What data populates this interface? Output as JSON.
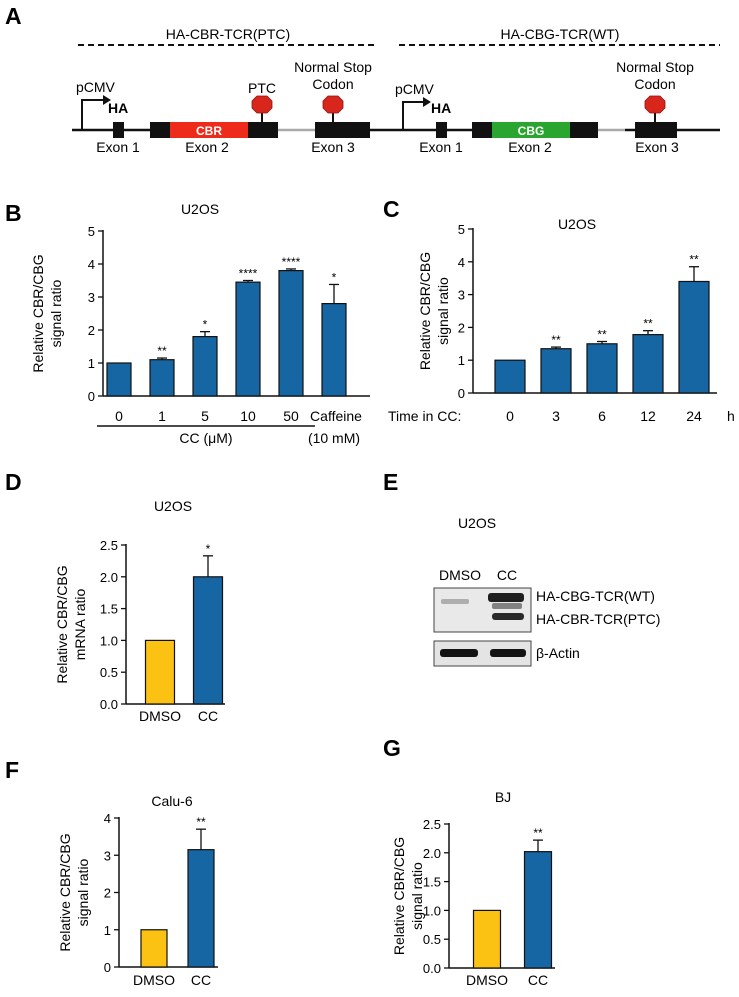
{
  "panel_labels": {
    "a": "A",
    "b": "B",
    "c": "C",
    "d": "D",
    "e": "E",
    "f": "F",
    "g": "G"
  },
  "colors": {
    "blue": "#1566A2",
    "yellow": "#FBC213",
    "red": "#EE2B1B",
    "green": "#2AA630",
    "stop_sign": "#D9261C",
    "black": "#111111",
    "grey_line": "#A9A9A9"
  },
  "constructs": {
    "ptc": {
      "title": "HA-CBR-TCR(PTC)",
      "promoter": "pCMV",
      "tag": "HA",
      "gene": "CBR",
      "stop_label": "PTC",
      "normal_stop_line1": "Normal Stop",
      "normal_stop_line2": "Codon",
      "exon1": "Exon 1",
      "exon2": "Exon 2",
      "exon3": "Exon 3"
    },
    "wt": {
      "title": "HA-CBG-TCR(WT)",
      "promoter": "pCMV",
      "tag": "HA",
      "gene": "CBG",
      "normal_stop_line1": "Normal Stop",
      "normal_stop_line2": "Codon",
      "exon1": "Exon 1",
      "exon2": "Exon 2",
      "exon3": "Exon 3"
    }
  },
  "blot": {
    "title": "U2OS",
    "lane_labels": [
      "DMSO",
      "CC"
    ],
    "band_labels": [
      "HA-CBG-TCR(WT)",
      "HA-CBR-TCR(PTC)",
      "β-Actin"
    ]
  },
  "chart_data": [
    {
      "panel": "B",
      "type": "bar",
      "title": "U2OS",
      "ylabel_line1": "Relative CBR/CBG",
      "ylabel_line2": "signal ratio",
      "ylim": [
        0,
        5
      ],
      "yticks": [
        "0",
        "1",
        "2",
        "3",
        "4",
        "5"
      ],
      "categories": [
        "0",
        "1",
        "5",
        "10",
        "50",
        "Caffeine"
      ],
      "values": [
        1.0,
        1.1,
        1.8,
        3.45,
        3.8,
        2.8
      ],
      "errors": [
        0,
        0.05,
        0.15,
        0.05,
        0.05,
        0.58
      ],
      "significance": [
        "",
        "**",
        "*",
        "****",
        "****",
        "*"
      ],
      "xgroup_label": "CC (μM)",
      "extra_label": "(10 mM)",
      "bar_colors": [
        "#1566A2",
        "#1566A2",
        "#1566A2",
        "#1566A2",
        "#1566A2",
        "#1566A2"
      ]
    },
    {
      "panel": "C",
      "type": "bar",
      "title": "U2OS",
      "ylabel_line1": "Relative CBR/CBG",
      "ylabel_line2": "signal ratio",
      "ylim": [
        0,
        5
      ],
      "yticks": [
        "0",
        "1",
        "2",
        "3",
        "4",
        "5"
      ],
      "categories": [
        "0",
        "3",
        "6",
        "12",
        "24"
      ],
      "values": [
        1.0,
        1.35,
        1.5,
        1.78,
        3.4
      ],
      "errors": [
        0,
        0.05,
        0.07,
        0.12,
        0.45
      ],
      "significance": [
        "",
        "**",
        "**",
        "**",
        "**"
      ],
      "xprefix": "Time in CC:",
      "xunit": "h",
      "bar_colors": [
        "#1566A2",
        "#1566A2",
        "#1566A2",
        "#1566A2",
        "#1566A2"
      ]
    },
    {
      "panel": "D",
      "type": "bar",
      "title": "U2OS",
      "ylabel_line1": "Relative CBR/CBG",
      "ylabel_line2": "mRNA ratio",
      "ylim": [
        0,
        2.5
      ],
      "yticks": [
        "0.0",
        "0.5",
        "1.0",
        "1.5",
        "2.0",
        "2.5"
      ],
      "categories": [
        "DMSO",
        "CC"
      ],
      "values": [
        1.0,
        2.0
      ],
      "errors": [
        0,
        0.33
      ],
      "significance": [
        "",
        "*"
      ],
      "bar_colors": [
        "#FBC213",
        "#1566A2"
      ]
    },
    {
      "panel": "F",
      "type": "bar",
      "title": "Calu-6",
      "ylabel_line1": "Relative CBR/CBG",
      "ylabel_line2": "signal ratio",
      "ylim": [
        0,
        4
      ],
      "yticks": [
        "0",
        "1",
        "2",
        "3",
        "4"
      ],
      "categories": [
        "DMSO",
        "CC"
      ],
      "values": [
        1.0,
        3.15
      ],
      "errors": [
        0,
        0.55
      ],
      "significance": [
        "",
        "**"
      ],
      "bar_colors": [
        "#FBC213",
        "#1566A2"
      ]
    },
    {
      "panel": "G",
      "type": "bar",
      "title": "BJ",
      "ylabel_line1": "Relative CBR/CBG",
      "ylabel_line2": "signal ratio",
      "ylim": [
        0,
        2.5
      ],
      "yticks": [
        "0.0",
        "0.5",
        "1.0",
        "1.5",
        "2.0",
        "2.5"
      ],
      "categories": [
        "DMSO",
        "CC"
      ],
      "values": [
        1.0,
        2.02
      ],
      "errors": [
        0,
        0.2
      ],
      "significance": [
        "",
        "**"
      ],
      "bar_colors": [
        "#FBC213",
        "#1566A2"
      ]
    }
  ]
}
